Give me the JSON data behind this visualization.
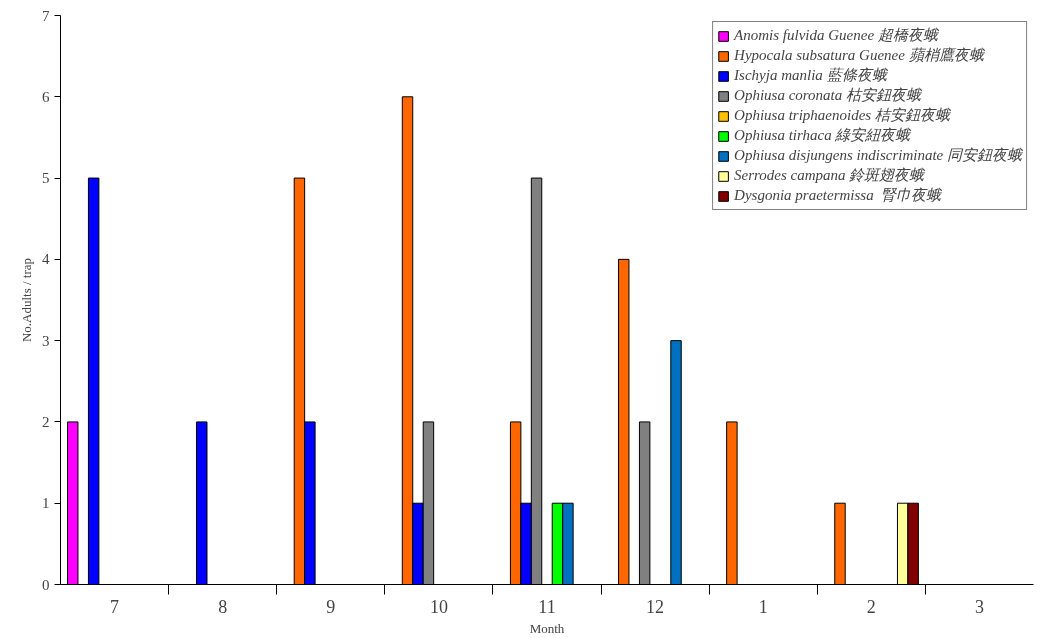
{
  "chart_data": {
    "type": "bar",
    "xlabel": "Month",
    "ylabel": "No.Adults / trap",
    "categories": [
      "7",
      "8",
      "9",
      "10",
      "11",
      "12",
      "1",
      "2",
      "3"
    ],
    "series": [
      {
        "name": "Anomis fulvida Guenee 超橋夜蛾",
        "color": "#ff00ff",
        "values": [
          2,
          null,
          null,
          null,
          null,
          null,
          null,
          null,
          null
        ]
      },
      {
        "name": "Hypocala subsatura Guenee 蘋梢鷹夜蛾",
        "color": "#ff6600",
        "values": [
          null,
          null,
          5,
          6,
          2,
          4,
          2,
          1,
          null
        ]
      },
      {
        "name": "Ischyja manlia 藍條夜蛾",
        "color": "#0000ff",
        "values": [
          5,
          2,
          2,
          1,
          1,
          null,
          null,
          null,
          null
        ]
      },
      {
        "name": "Ophiusa coronata 枯安鈕夜蛾",
        "color": "#808080",
        "values": [
          null,
          null,
          null,
          2,
          5,
          2,
          null,
          null,
          null
        ]
      },
      {
        "name": "Ophiusa triphaenoides 桔安鈕夜蛾",
        "color": "#ffc000",
        "values": [
          null,
          null,
          null,
          null,
          null,
          null,
          null,
          null,
          null
        ]
      },
      {
        "name": "Ophiusa tirhaca 綠安紐夜蛾",
        "color": "#00ff00",
        "values": [
          null,
          null,
          null,
          null,
          1,
          null,
          null,
          null,
          null
        ]
      },
      {
        "name": "Ophiusa disjungens indiscriminate 同安鈕夜蛾",
        "color": "#0070c0",
        "values": [
          null,
          null,
          null,
          null,
          1,
          3,
          null,
          null,
          null
        ]
      },
      {
        "name": "Serrodes campana 鈴斑翅夜蛾",
        "color": "#ffff99",
        "values": [
          null,
          null,
          null,
          null,
          null,
          null,
          null,
          1,
          null
        ]
      },
      {
        "name": "Dysgonia praetermissa  腎巾夜蛾",
        "color": "#800000",
        "values": [
          null,
          null,
          null,
          null,
          null,
          null,
          null,
          1,
          null
        ]
      }
    ],
    "ylim": [
      0,
      7
    ],
    "yticks": [
      0,
      1,
      2,
      3,
      4,
      5,
      6,
      7
    ],
    "grid": false,
    "legend": "top right"
  }
}
